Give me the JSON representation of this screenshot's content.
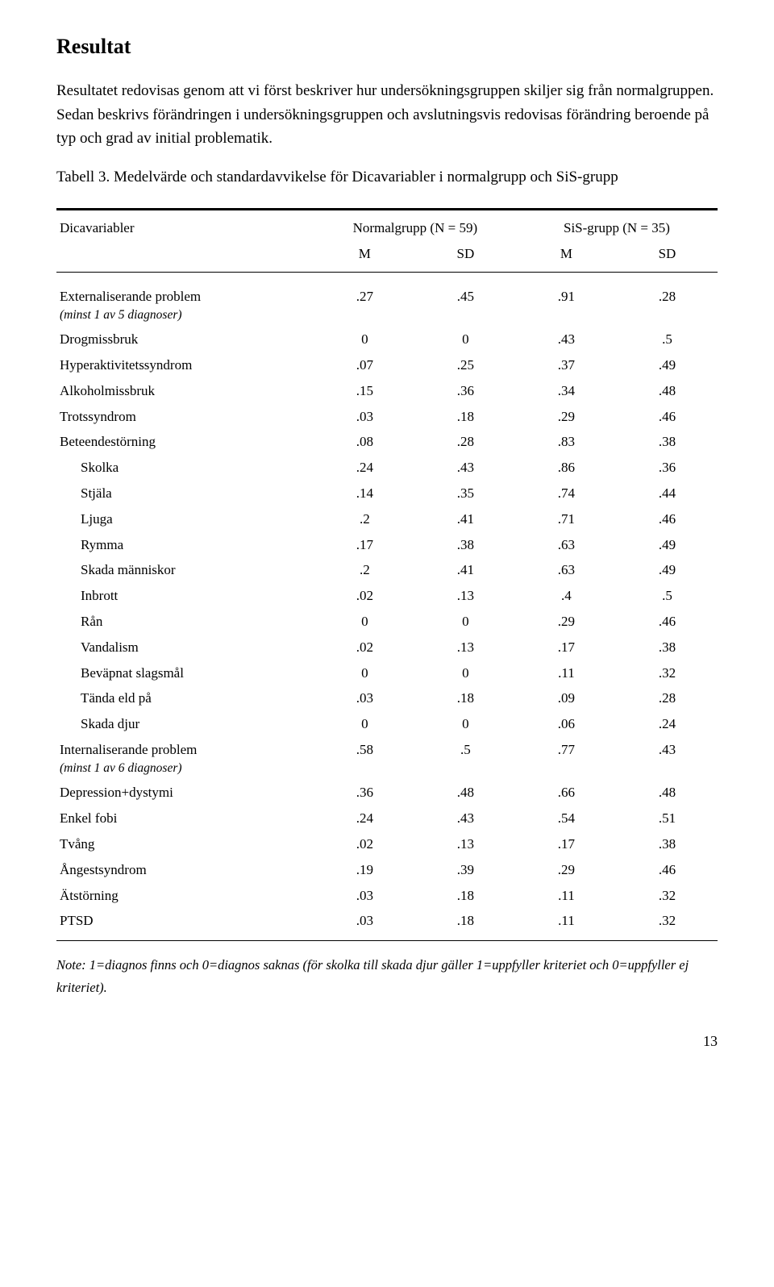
{
  "heading": "Resultat",
  "paragraph": "Resultatet redovisas genom att vi först beskriver hur undersökningsgruppen skiljer sig från normalgruppen. Sedan beskrivs förändringen i undersökningsgruppen och avslutningsvis redovisas förändring beroende på typ och grad av initial problematik.",
  "caption_prefix": "Tabell 3. ",
  "caption_rest": "Medelvärde och standardavvikelse för Dicavariabler i normalgrupp och SiS-grupp",
  "table": {
    "head_var": "Dicavariabler",
    "head_normal": "Normalgrupp (N = 59)",
    "head_sis": "SiS-grupp (N = 35)",
    "sub_m": "M",
    "sub_sd": "SD",
    "rows": [
      {
        "label": "Externaliserande problem",
        "sub": "(minst 1 av  5 diagnoser)",
        "m1": ".27",
        "sd1": ".45",
        "m2": ".91",
        "sd2": ".28",
        "indent": 0
      },
      {
        "label": "Drogmissbruk",
        "m1": "0",
        "sd1": "0",
        "m2": ".43",
        "sd2": ".5",
        "indent": 0
      },
      {
        "label": "Hyperaktivitetssyndrom",
        "m1": ".07",
        "sd1": ".25",
        "m2": ".37",
        "sd2": ".49",
        "indent": 0
      },
      {
        "label": "Alkoholmissbruk",
        "m1": ".15",
        "sd1": ".36",
        "m2": ".34",
        "sd2": ".48",
        "indent": 0
      },
      {
        "label": "Trotssyndrom",
        "m1": ".03",
        "sd1": ".18",
        "m2": ".29",
        "sd2": ".46",
        "indent": 0
      },
      {
        "label": "Beteendestörning",
        "m1": ".08",
        "sd1": ".28",
        "m2": ".83",
        "sd2": ".38",
        "indent": 0
      },
      {
        "label": "Skolka",
        "m1": ".24",
        "sd1": ".43",
        "m2": ".86",
        "sd2": ".36",
        "indent": 1
      },
      {
        "label": "Stjäla",
        "m1": ".14",
        "sd1": ".35",
        "m2": ".74",
        "sd2": ".44",
        "indent": 1
      },
      {
        "label": "Ljuga",
        "m1": ".2",
        "sd1": ".41",
        "m2": ".71",
        "sd2": ".46",
        "indent": 1
      },
      {
        "label": "Rymma",
        "m1": ".17",
        "sd1": ".38",
        "m2": ".63",
        "sd2": ".49",
        "indent": 1
      },
      {
        "label": "Skada människor",
        "m1": ".2",
        "sd1": ".41",
        "m2": ".63",
        "sd2": ".49",
        "indent": 1
      },
      {
        "label": "Inbrott",
        "m1": ".02",
        "sd1": ".13",
        "m2": ".4",
        "sd2": ".5",
        "indent": 1
      },
      {
        "label": "Rån",
        "m1": "0",
        "sd1": "0",
        "m2": ".29",
        "sd2": ".46",
        "indent": 1
      },
      {
        "label": "Vandalism",
        "m1": ".02",
        "sd1": ".13",
        "m2": ".17",
        "sd2": ".38",
        "indent": 1
      },
      {
        "label": "Beväpnat slagsmål",
        "m1": "0",
        "sd1": "0",
        "m2": ".11",
        "sd2": ".32",
        "indent": 1
      },
      {
        "label": "Tända eld på",
        "m1": ".03",
        "sd1": ".18",
        "m2": ".09",
        "sd2": ".28",
        "indent": 1
      },
      {
        "label": "Skada djur",
        "m1": "0",
        "sd1": "0",
        "m2": ".06",
        "sd2": ".24",
        "indent": 1
      },
      {
        "label": "Internaliserande problem",
        "sub": "(minst 1 av  6 diagnoser)",
        "m1": ".58",
        "sd1": ".5",
        "m2": ".77",
        "sd2": ".43",
        "indent": 0
      },
      {
        "label": "Depression+dystymi",
        "m1": ".36",
        "sd1": ".48",
        "m2": ".66",
        "sd2": ".48",
        "indent": 0
      },
      {
        "label": "Enkel fobi",
        "m1": ".24",
        "sd1": ".43",
        "m2": ".54",
        "sd2": ".51",
        "indent": 0
      },
      {
        "label": "Tvång",
        "m1": ".02",
        "sd1": ".13",
        "m2": ".17",
        "sd2": ".38",
        "indent": 0
      },
      {
        "label": "Ångestsyndrom",
        "m1": ".19",
        "sd1": ".39",
        "m2": ".29",
        "sd2": ".46",
        "indent": 0
      },
      {
        "label": "Ätstörning",
        "m1": ".03",
        "sd1": ".18",
        "m2": ".11",
        "sd2": ".32",
        "indent": 0
      },
      {
        "label": "PTSD",
        "m1": ".03",
        "sd1": ".18",
        "m2": ".11",
        "sd2": ".32",
        "indent": 0
      }
    ]
  },
  "note": "Note: 1=diagnos finns och 0=diagnos saknas (för skolka till skada djur gäller 1=uppfyller kriteriet och 0=uppfyller ej kriteriet).",
  "page_number": "13"
}
